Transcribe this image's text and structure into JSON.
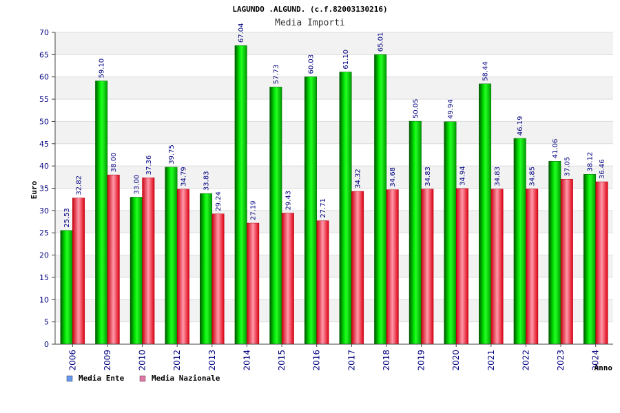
{
  "chart_data": {
    "type": "bar",
    "title": "LAGUNDO .ALGUND. (c.f.82003130216)",
    "subtitle": "Media Importi",
    "xlabel": "Anno",
    "ylabel": "Euro",
    "ylim": [
      0,
      70
    ],
    "yticks": [
      "0",
      "5",
      "10",
      "15",
      "20",
      "25",
      "30",
      "35",
      "40",
      "45",
      "50",
      "55",
      "60",
      "65",
      "70"
    ],
    "categories": [
      "2006",
      "2009",
      "2010",
      "2012",
      "2013",
      "2014",
      "2015",
      "2016",
      "2017",
      "2018",
      "2019",
      "2020",
      "2021",
      "2022",
      "2023",
      "2024"
    ],
    "series": [
      {
        "name": "Media Ente",
        "color": "#00cc00",
        "legend_color": "#6699ee",
        "values": [
          25.53,
          59.1,
          33.0,
          39.75,
          33.83,
          67.04,
          57.73,
          60.03,
          61.1,
          65.01,
          50.05,
          49.94,
          58.44,
          46.19,
          41.06,
          38.12
        ],
        "labels": [
          "25.53",
          "59.10",
          "33.00",
          "39.75",
          "33.83",
          "67.04",
          "57.73",
          "60.03",
          "61.10",
          "65.01",
          "50.05",
          "49.94",
          "58.44",
          "46.19",
          "41.06",
          "38.12"
        ]
      },
      {
        "name": "Media Nazionale",
        "color": "#ee1122",
        "legend_color": "#dd77aa",
        "values": [
          32.82,
          38.0,
          37.36,
          34.79,
          29.24,
          27.19,
          29.43,
          27.71,
          34.32,
          34.68,
          34.83,
          34.94,
          34.83,
          34.85,
          37.05,
          36.46
        ],
        "labels": [
          "32.82",
          "38.00",
          "37.36",
          "34.79",
          "29.24",
          "27.19",
          "29.43",
          "27.71",
          "34.32",
          "34.68",
          "34.83",
          "34.94",
          "34.83",
          "34.85",
          "37.05",
          "36.46"
        ]
      }
    ],
    "grid": true,
    "legend_placement": "bottom-left"
  }
}
